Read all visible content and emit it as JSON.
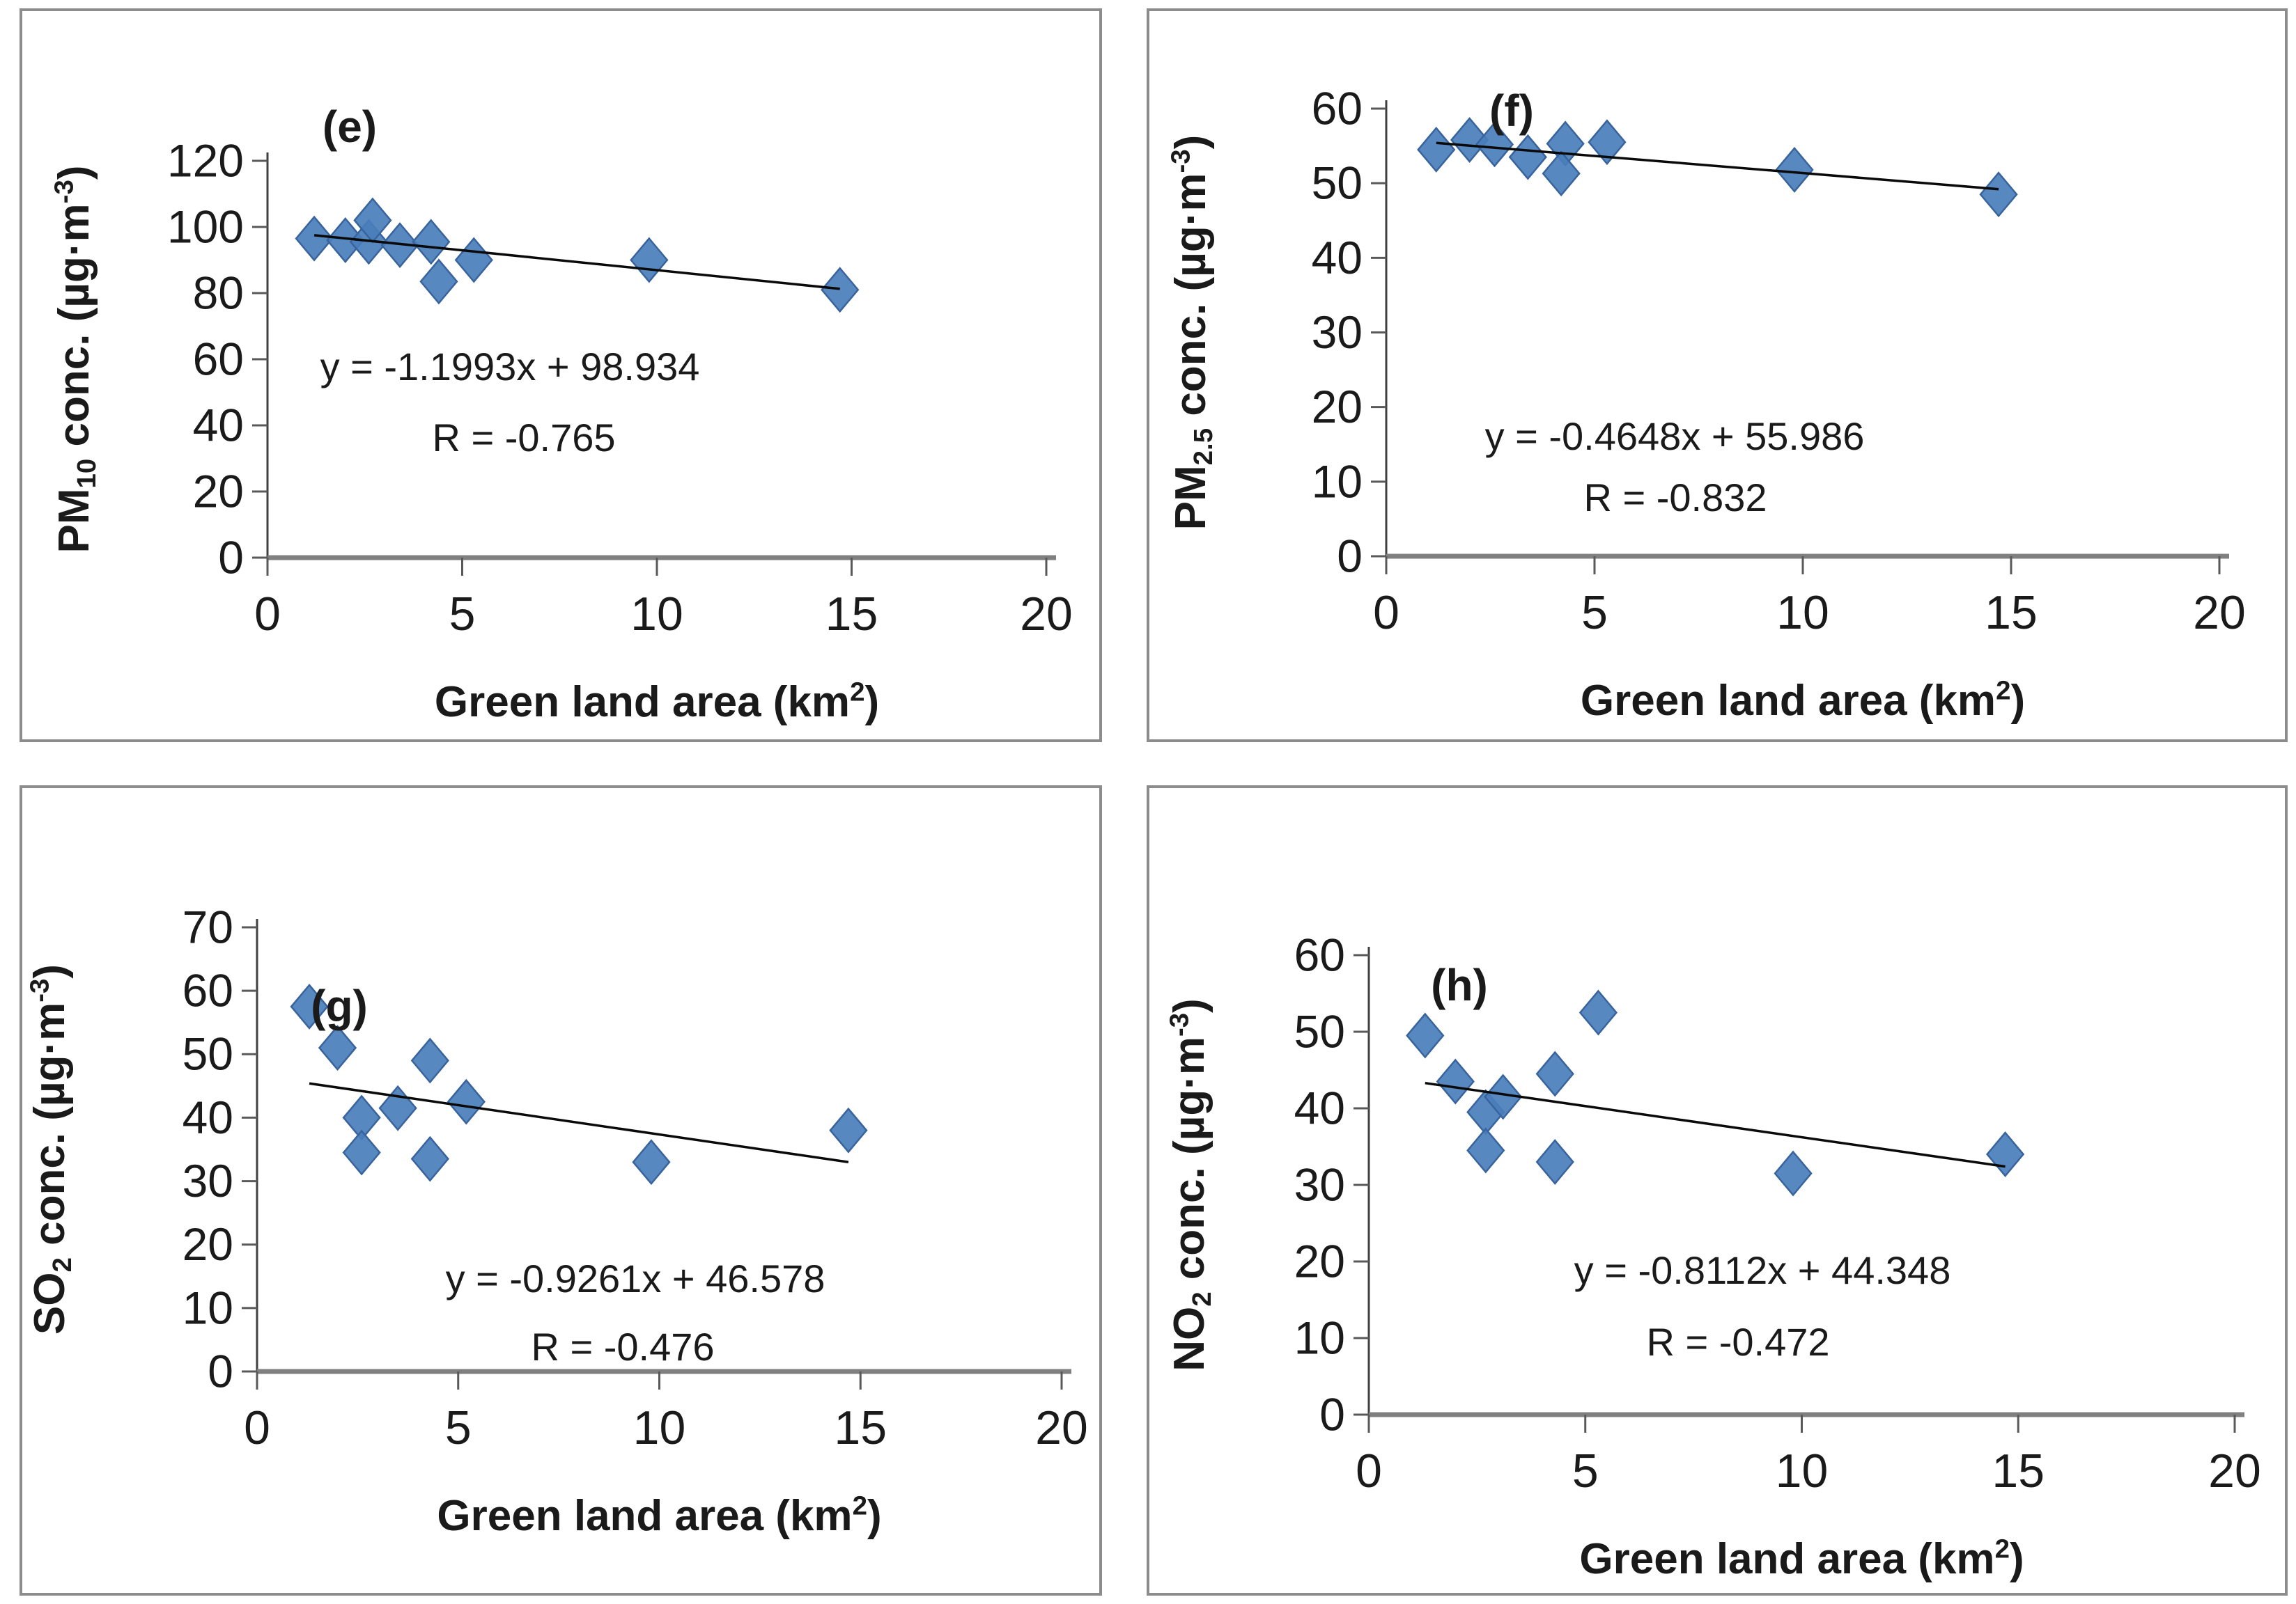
{
  "figure_title": "",
  "colors": {
    "marker_fill": "#4a7ebb",
    "marker_edge": "#38639d",
    "trendline": "#0a0a0a",
    "y_axis_line": "#404040",
    "x_axis_line": "#808080",
    "tick_mark": "#595959",
    "text": "#1a1a1a",
    "panel_border": "#8c8c8c",
    "background": "#ffffff"
  },
  "chart_data": [
    {
      "type": "scatter",
      "panel_letter": "(e)",
      "ylabel_text": "PM10 conc. (µg·m-3)",
      "ylabel_parts": [
        [
          "PM",
          ""
        ],
        [
          "10",
          "sub"
        ],
        [
          " conc. (µg·m",
          ""
        ],
        [
          "-3",
          "sup"
        ],
        [
          ")",
          ""
        ]
      ],
      "xlabel_text": "Green land area (km2)",
      "xlabel_parts": [
        [
          "Green land area (km",
          ""
        ],
        [
          "2",
          "sup"
        ],
        [
          ")",
          ""
        ]
      ],
      "xlim": [
        0,
        20
      ],
      "ylim": [
        0,
        120
      ],
      "x_ticks": [
        0,
        5,
        10,
        15,
        20
      ],
      "y_ticks": [
        0,
        20,
        40,
        60,
        80,
        100,
        120
      ],
      "points": [
        [
          1.2,
          96.5
        ],
        [
          2.0,
          96
        ],
        [
          2.6,
          95.5
        ],
        [
          2.7,
          102
        ],
        [
          3.4,
          94.5
        ],
        [
          4.2,
          95.5
        ],
        [
          4.4,
          83.5
        ],
        [
          5.3,
          90
        ],
        [
          9.8,
          90
        ],
        [
          14.7,
          81
        ]
      ],
      "trendline": {
        "x1": 1.2,
        "y1": 97.5,
        "x2": 14.7,
        "y2": 81.3
      },
      "equation": "y = -1.1993x + 98.934",
      "r_label": "R = -0.765"
    },
    {
      "type": "scatter",
      "panel_letter": "(f)",
      "ylabel_text": "PM2.5 conc. (µg·m-3)",
      "ylabel_parts": [
        [
          "PM",
          ""
        ],
        [
          "2.5",
          "sub"
        ],
        [
          " conc. (µg·m",
          ""
        ],
        [
          "-3",
          "sup"
        ],
        [
          ")",
          ""
        ]
      ],
      "xlabel_text": "Green land area (km2)",
      "xlabel_parts": [
        [
          "Green land area (km",
          ""
        ],
        [
          "2",
          "sup"
        ],
        [
          ")",
          ""
        ]
      ],
      "xlim": [
        0,
        20
      ],
      "ylim": [
        0,
        60
      ],
      "x_ticks": [
        0,
        5,
        10,
        15,
        20
      ],
      "y_ticks": [
        0,
        10,
        20,
        30,
        40,
        50,
        60
      ],
      "points": [
        [
          1.2,
          54.5
        ],
        [
          2.0,
          55.8
        ],
        [
          2.6,
          55.2
        ],
        [
          3.4,
          53.5
        ],
        [
          4.3,
          55.3
        ],
        [
          4.2,
          51.3
        ],
        [
          5.3,
          55.5
        ],
        [
          9.8,
          51.8
        ],
        [
          14.7,
          48.5
        ]
      ],
      "trendline": {
        "x1": 1.2,
        "y1": 55.4,
        "x2": 14.7,
        "y2": 49.2
      },
      "equation": "y = -0.4648x + 55.986",
      "r_label": "R = -0.832"
    },
    {
      "type": "scatter",
      "panel_letter": "(g)",
      "ylabel_text": "SO2 conc. (µg·m-3)",
      "ylabel_parts": [
        [
          "SO",
          ""
        ],
        [
          "2",
          "sub"
        ],
        [
          " conc. (µg·m",
          ""
        ],
        [
          "-3",
          "sup"
        ],
        [
          ")",
          ""
        ]
      ],
      "xlabel_text": "Green land area (km2)",
      "xlabel_parts": [
        [
          "Green land area (km",
          ""
        ],
        [
          "2",
          "sup"
        ],
        [
          ")",
          ""
        ]
      ],
      "xlim": [
        0,
        20
      ],
      "ylim": [
        0,
        70
      ],
      "x_ticks": [
        0,
        5,
        10,
        15,
        20
      ],
      "y_ticks": [
        0,
        10,
        20,
        30,
        40,
        50,
        60,
        70
      ],
      "points": [
        [
          1.3,
          57.5
        ],
        [
          2.0,
          51
        ],
        [
          2.6,
          40
        ],
        [
          2.6,
          34.5
        ],
        [
          3.5,
          41.5
        ],
        [
          4.3,
          49
        ],
        [
          4.3,
          33.5
        ],
        [
          5.2,
          42.5
        ],
        [
          9.8,
          33
        ],
        [
          14.7,
          38
        ]
      ],
      "trendline": {
        "x1": 1.3,
        "y1": 45.4,
        "x2": 14.7,
        "y2": 33.0
      },
      "equation": "y = -0.9261x + 46.578",
      "r_label": "R = -0.476"
    },
    {
      "type": "scatter",
      "panel_letter": "(h)",
      "ylabel_text": "NO2 conc. (µg·m-3)",
      "ylabel_parts": [
        [
          "NO",
          ""
        ],
        [
          "2",
          "sub"
        ],
        [
          " conc. (µg·m",
          ""
        ],
        [
          "-3",
          "sup"
        ],
        [
          ")",
          ""
        ]
      ],
      "xlabel_text": "Green land area (km2)",
      "xlabel_parts": [
        [
          "Green land area (km",
          ""
        ],
        [
          "2",
          "sup"
        ],
        [
          ")",
          ""
        ]
      ],
      "xlim": [
        0,
        20
      ],
      "ylim": [
        0,
        60
      ],
      "x_ticks": [
        0,
        5,
        10,
        15,
        20
      ],
      "y_ticks": [
        0,
        10,
        20,
        30,
        40,
        50,
        60
      ],
      "points": [
        [
          1.3,
          49.5
        ],
        [
          2.0,
          43.5
        ],
        [
          2.7,
          39.5
        ],
        [
          2.7,
          34.5
        ],
        [
          3.1,
          41.5
        ],
        [
          4.3,
          44.5
        ],
        [
          4.3,
          33
        ],
        [
          5.3,
          52.5
        ],
        [
          9.8,
          31.5
        ],
        [
          14.7,
          34
        ]
      ],
      "trendline": {
        "x1": 1.3,
        "y1": 43.3,
        "x2": 14.7,
        "y2": 32.4
      },
      "equation": "y = -0.8112x + 44.348",
      "r_label": "R = -0.472"
    }
  ]
}
